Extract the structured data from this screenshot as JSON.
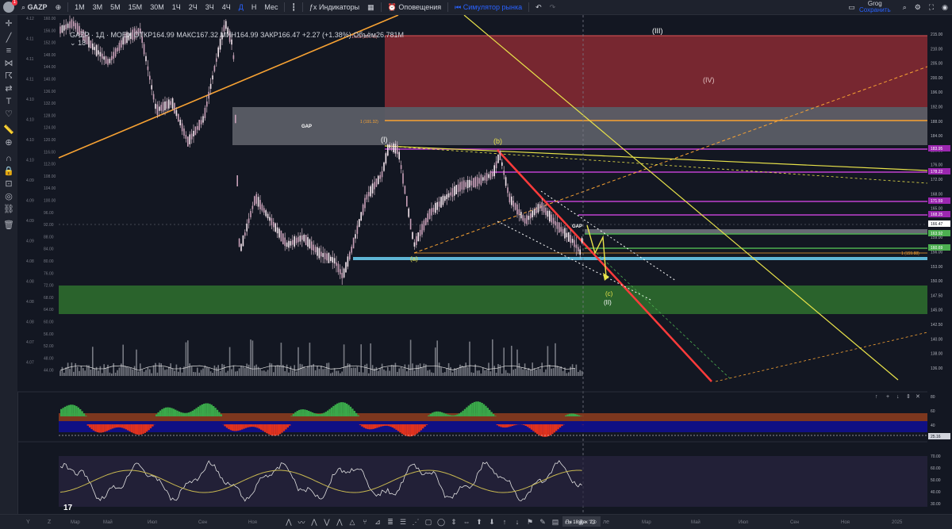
{
  "toolbar": {
    "notif_count": "1",
    "symbol": "GAZP",
    "timeframes": [
      "1М",
      "3М",
      "5М",
      "15М",
      "30М",
      "1Ч",
      "2Ч",
      "3Ч",
      "4Ч",
      "Д",
      "Н",
      "Мес"
    ],
    "active_timeframe": "Д",
    "indicators_label": "Индикаторы",
    "alerts_label": "Оповещения",
    "simulator_label": "Симулятор рынка",
    "user_name": "Grog",
    "save_label": "Сохранить",
    "currency": "RUB"
  },
  "legend": {
    "title": "GAZP · 1Д · MOEX",
    "open_label": "ОТКР",
    "open": "164.99",
    "high_label": "МАКС",
    "high": "167.32",
    "low_label": "МИН",
    "low": "164.99",
    "close_label": "ЗАКР",
    "close": "166.47",
    "change": "+2.27 (+1.38%)",
    "volume_label": "Объём",
    "volume": "26.781M",
    "sub": "18"
  },
  "annotations": {
    "gap_top": "GAP",
    "gap_small": "GAP",
    "wave_III": "(III)",
    "wave_IV": "(IV)",
    "wave_I": "(I)",
    "wave_b": "(b)",
    "wave_a": "(a)",
    "wave_c": "(c)",
    "wave_II": "(II)",
    "fib_1618": "1.618 (214.49)",
    "fib_1_top": "1 (191.32)",
    "fib_1_low": "1 (159.88)"
  },
  "right_scale": {
    "ticks": [
      "215.00",
      "210.00",
      "205.00",
      "200.00",
      "196.00",
      "192.00",
      "188.00",
      "184.00",
      "180.00",
      "176.00",
      "172.00",
      "168.00",
      "165.00",
      "162.00",
      "159.00",
      "156.00",
      "153.00",
      "150.00",
      "147.50",
      "145.00",
      "142.50",
      "140.00",
      "138.00",
      "136.00"
    ],
    "labels": [
      {
        "text": "183.95",
        "color": "#9c27b0"
      },
      {
        "text": "178.22",
        "color": "#9c27b0"
      },
      {
        "text": "171.59",
        "color": "#9c27b0"
      },
      {
        "text": "168.25",
        "color": "#9c27b0"
      },
      {
        "text": "166.47",
        "color": "#ffffff"
      },
      {
        "text": "163.92",
        "color": "#4caf50"
      },
      {
        "text": "160.69",
        "color": "#4caf50"
      }
    ],
    "osc1_ticks": [
      "80",
      "60",
      "40"
    ],
    "osc1_label": "25.16",
    "osc2_ticks": [
      "70.00",
      "60.00",
      "50.00",
      "40.00",
      "30.00"
    ]
  },
  "left_scale": {
    "ticks": [
      "4.12",
      "4.11",
      "4.11",
      "4.11",
      "4.10",
      "4.10",
      "4.10",
      "4.10",
      "4.09",
      "4.09",
      "4.09",
      "4.09",
      "4.08",
      "4.08",
      "4.08",
      "4.08",
      "4.07",
      "4.07"
    ],
    "inner_ticks": [
      "160.00",
      "156.00",
      "152.00",
      "148.00",
      "144.00",
      "140.00",
      "136.00",
      "132.00",
      "128.00",
      "124.00",
      "120.00",
      "116.00",
      "112.00",
      "108.00",
      "104.00",
      "100.00",
      "96.00",
      "92.00",
      "88.00",
      "84.00",
      "80.00",
      "76.00",
      "72.00",
      "68.00",
      "64.00",
      "60.00",
      "56.00",
      "52.00",
      "48.00",
      "44.00"
    ]
  },
  "time_axis": {
    "labels": [
      "Мар",
      "Май",
      "Июл",
      "Сен",
      "Ноя",
      "Мар",
      "Май",
      "Июл",
      "Сен",
      "Ноя",
      "2025"
    ],
    "current_date": "Пн 18 Дек '23",
    "hidden_label": "ле"
  },
  "icons": {
    "chart_type": "candles-icon",
    "drawing_tools": [
      "cursor",
      "trendline",
      "fib",
      "pattern",
      "elliott",
      "projection",
      "text",
      "annotation",
      "ruler",
      "zoom",
      "magnet",
      "lock",
      "eye",
      "link",
      "trash"
    ]
  },
  "colors": {
    "background": "#131722",
    "bull_candle": "#f0d0e0",
    "bear_candle": "#f0d0e0",
    "resistance_zone": "#b2303a",
    "gap_zone": "#d1d4dc",
    "support_zone": "#2e7d32",
    "support_line": "#5fb6d6",
    "red_line": "#ff3b3b",
    "orange_line": "#f7a233",
    "yellow_line": "#e8e24a"
  }
}
